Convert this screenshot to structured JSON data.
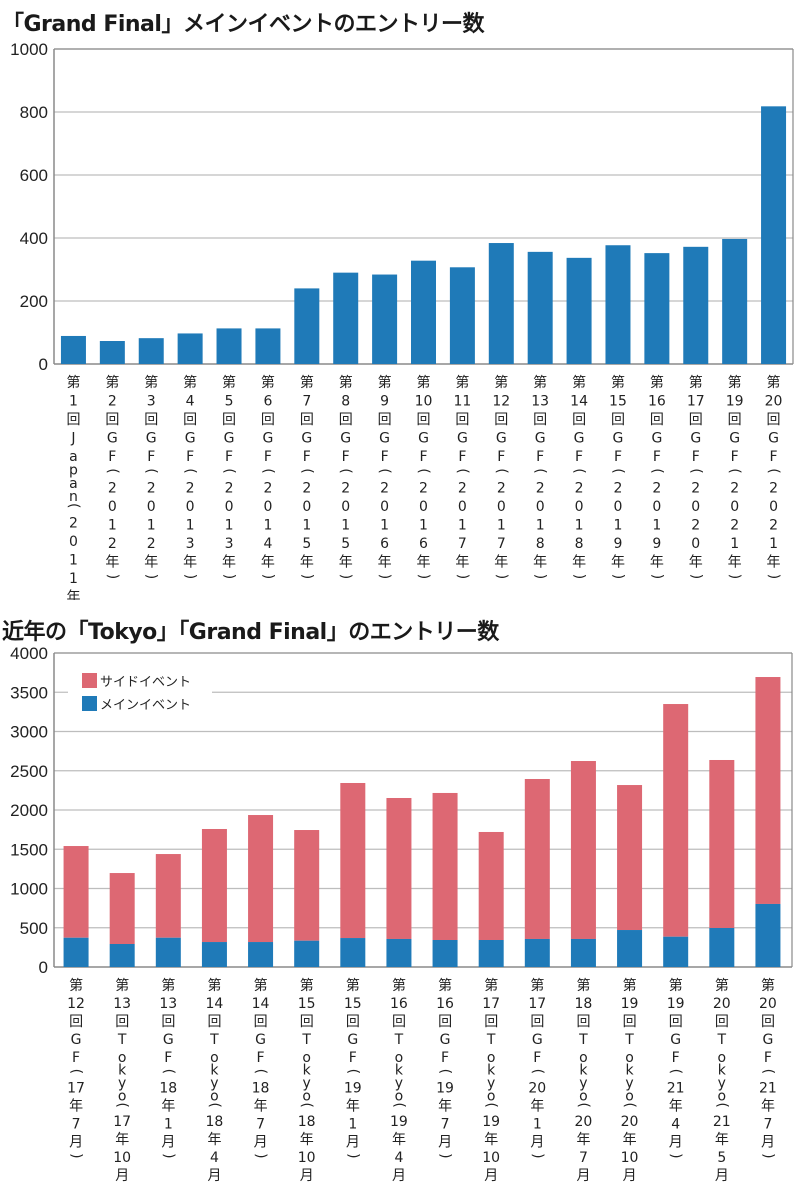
{
  "chart_data": [
    {
      "type": "bar",
      "title": "「Grand Final」メインイベントのエントリー数",
      "xlabel": "",
      "ylabel": "",
      "ylim": [
        0,
        1000
      ],
      "yticks": [
        0,
        200,
        400,
        600,
        800,
        1000
      ],
      "grid": true,
      "color": "#1f7ab8",
      "categories": [
        "第1回Japan(2011年)",
        "第2回GF(2012年)",
        "第3回GF(2012年)",
        "第4回GF(2013年)",
        "第5回GF(2013年)",
        "第6回GF(2014年)",
        "第7回GF(2015年)",
        "第8回GF(2015年)",
        "第9回GF(2016年)",
        "第10回GF(2016年)",
        "第11回GF(2017年)",
        "第12回GF(2017年)",
        "第13回GF(2018年)",
        "第14回GF(2018年)",
        "第15回GF(2019年)",
        "第16回GF(2019年)",
        "第17回GF(2020年)",
        "第19回GF(2021年)",
        "第20回GF(2021年)"
      ],
      "values": [
        89,
        73,
        82,
        97,
        113,
        113,
        240,
        290,
        284,
        328,
        307,
        384,
        356,
        337,
        377,
        352,
        372,
        397,
        818
      ]
    },
    {
      "type": "bar",
      "stacked": true,
      "title": "近年の「Tokyo」「Grand Final」のエントリー数",
      "xlabel": "",
      "ylabel": "",
      "ylim": [
        0,
        4000
      ],
      "yticks": [
        0,
        500,
        1000,
        1500,
        2000,
        2500,
        3000,
        3500,
        4000
      ],
      "grid": true,
      "legend_position": "top-left",
      "categories": [
        "第12回GF(17年7月)",
        "第13回Tokyo(17年10月)",
        "第13回GF(18年1月)",
        "第14回Tokyo(18年4月)",
        "第14回GF(18年7月)",
        "第15回Tokyo(18年10月)",
        "第15回GF(19年1月)",
        "第16回Tokyo(19年4月)",
        "第16回GF(19年7月)",
        "第17回Tokyo(19年10月)",
        "第17回GF(20年1月)",
        "第18回Tokyo(20年7月)",
        "第19回Tokyo(20年10月)",
        "第19回GF(21年4月)",
        "第20回Tokyo(21年5月)",
        "第20回GF(21年7月)"
      ],
      "series": [
        {
          "name": "メインイベント",
          "color": "#1f7ab8",
          "values": [
            373,
            293,
            373,
            318,
            318,
            335,
            369,
            357,
            344,
            344,
            357,
            357,
            471,
            386,
            497,
            803
          ]
        },
        {
          "name": "サイドイベント",
          "color": "#dd6873",
          "values": [
            1168,
            904,
            1066,
            1440,
            1618,
            1410,
            1975,
            1796,
            1873,
            1376,
            2038,
            2267,
            1847,
            2964,
            2140,
            2891
          ]
        }
      ],
      "legend": [
        "サイドイベント",
        "メインイベント"
      ]
    }
  ]
}
